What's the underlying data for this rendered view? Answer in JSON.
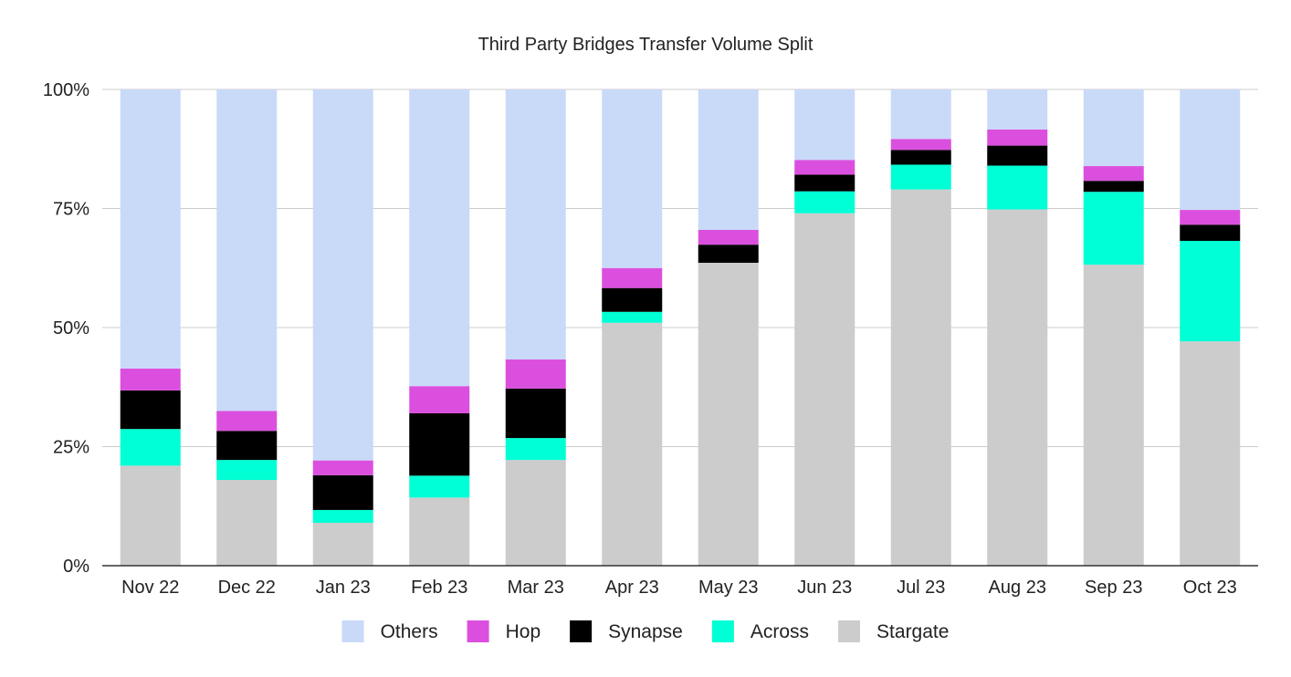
{
  "chart_data": {
    "type": "bar",
    "stacked": true,
    "normalized": true,
    "title": "Third Party Bridges Transfer Volume Split",
    "xlabel": "",
    "ylabel": "",
    "ylim": [
      0,
      100
    ],
    "y_ticks": [
      "0%",
      "25%",
      "50%",
      "75%",
      "100%"
    ],
    "y_tick_values": [
      0,
      25,
      50,
      75,
      100
    ],
    "grid": true,
    "legend_position": "bottom",
    "categories": [
      "Nov 22",
      "Dec 22",
      "Jan 23",
      "Feb 23",
      "Mar 23",
      "Apr 23",
      "May 23",
      "Jun 23",
      "Jul 23",
      "Aug 23",
      "Sep 23",
      "Oct 23"
    ],
    "series": [
      {
        "name": "Stargate",
        "color": "#cccccc",
        "values": [
          21,
          18,
          9,
          14.3,
          22.2,
          51,
          63.6,
          74,
          79,
          74.8,
          63.2,
          47.1
        ]
      },
      {
        "name": "Across",
        "color": "#00ffd5",
        "values": [
          7.7,
          4.2,
          2.7,
          4.6,
          4.6,
          2.3,
          0,
          4.6,
          5.2,
          9.2,
          15.3,
          21.1
        ]
      },
      {
        "name": "Synapse",
        "color": "#000000",
        "values": [
          8.1,
          6.1,
          7.3,
          13.1,
          10.4,
          5,
          3.8,
          3.5,
          3.1,
          4.2,
          2.3,
          3.4
        ]
      },
      {
        "name": "Hop",
        "color": "#db4fdf",
        "values": [
          4.6,
          4.2,
          3.1,
          5.7,
          6.1,
          4.2,
          3.1,
          3.1,
          2.3,
          3.4,
          3.1,
          3.1
        ]
      },
      {
        "name": "Others",
        "color": "#c9daf8",
        "values": [
          58.6,
          67.5,
          77.9,
          62.3,
          56.7,
          37.5,
          29.5,
          14.8,
          10.4,
          8.4,
          16.1,
          25.3
        ]
      }
    ],
    "legend_order": [
      "Others",
      "Hop",
      "Synapse",
      "Across",
      "Stargate"
    ]
  }
}
